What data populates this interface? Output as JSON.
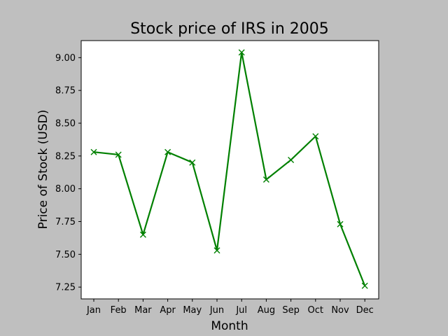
{
  "chart_data": {
    "type": "line",
    "title": "Stock price of IRS in 2005",
    "xlabel": "Month",
    "ylabel": "Price of Stock (USD)",
    "categories": [
      "Jan",
      "Feb",
      "Mar",
      "Apr",
      "May",
      "Jun",
      "Jul",
      "Aug",
      "Sep",
      "Oct",
      "Nov",
      "Dec"
    ],
    "series": [
      {
        "values": [
          8.28,
          8.26,
          7.65,
          8.28,
          8.2,
          7.53,
          9.04,
          8.07,
          8.22,
          8.4,
          7.73,
          7.26
        ],
        "color": "#008000",
        "marker": "x"
      }
    ],
    "yticks": [
      "7.25",
      "7.50",
      "7.75",
      "8.00",
      "8.25",
      "8.50",
      "8.75",
      "9.00"
    ],
    "ylim": [
      7.16,
      9.13
    ],
    "grid": false,
    "background": "#bfbfbf",
    "plot_background": "#ffffff"
  }
}
